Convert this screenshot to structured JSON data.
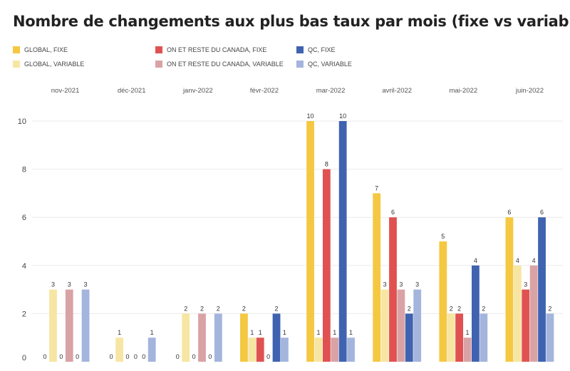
{
  "title": "Nombre de changements aux plus bas taux par mois (fixe vs variable)",
  "legend": [
    {
      "label": "GLOBAL, FIXE",
      "color": "#f5c842"
    },
    {
      "label": "GLOBAL, VARIABLE",
      "color": "#f7e6a3"
    },
    {
      "label": "ON ET RESTE DU CANADA, FIXE",
      "color": "#e05252"
    },
    {
      "label": "ON ET RESTE DU CANADA, VARIABLE",
      "color": "#d9a3a6"
    },
    {
      "label": "QC, FIXE",
      "color": "#3f63b0"
    },
    {
      "label": "QC, VARIABLE",
      "color": "#a3b5dd"
    }
  ],
  "chart_data": {
    "type": "bar",
    "title": "Nombre de changements aux plus bas taux par mois (fixe vs variable)",
    "categories": [
      "nov-2021",
      "déc-2021",
      "janv-2022",
      "févr-2022",
      "mar-2022",
      "avril-2022",
      "mai-2022",
      "juin-2022"
    ],
    "series": [
      {
        "name": "GLOBAL, FIXE",
        "color": "#f5c842",
        "values": [
          0,
          0,
          0,
          2,
          10,
          7,
          5,
          6
        ]
      },
      {
        "name": "GLOBAL, VARIABLE",
        "color": "#f7e6a3",
        "values": [
          3,
          1,
          2,
          1,
          1,
          3,
          2,
          4
        ]
      },
      {
        "name": "ON ET RESTE DU CANADA, FIXE",
        "color": "#e05252",
        "values": [
          0,
          0,
          0,
          1,
          8,
          6,
          2,
          3
        ]
      },
      {
        "name": "ON ET RESTE DU CANADA, VARIABLE",
        "color": "#d9a3a6",
        "values": [
          3,
          0,
          2,
          0,
          1,
          3,
          1,
          4
        ]
      },
      {
        "name": "QC, FIXE",
        "color": "#3f63b0",
        "values": [
          0,
          0,
          0,
          2,
          10,
          2,
          4,
          6
        ]
      },
      {
        "name": "QC, VARIABLE",
        "color": "#a3b5dd",
        "values": [
          3,
          1,
          2,
          1,
          1,
          3,
          2,
          2
        ]
      }
    ],
    "ylim": [
      0,
      10
    ],
    "yticks": [
      0,
      2,
      4,
      6,
      8,
      10
    ],
    "grid": true,
    "category_labels_position": "top",
    "legend_position": "top"
  }
}
